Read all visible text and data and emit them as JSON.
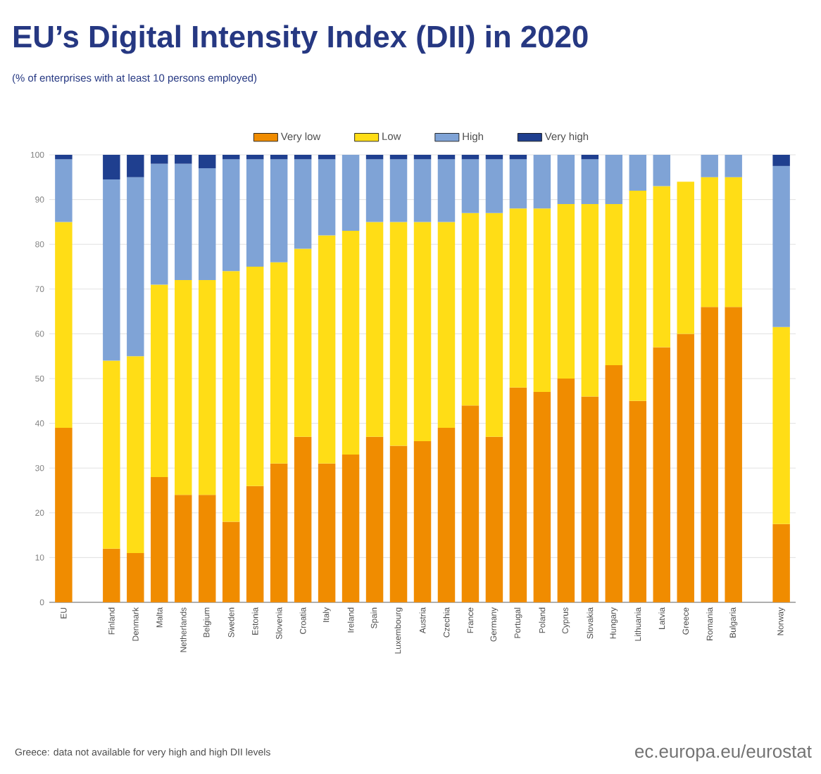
{
  "chart_data": {
    "type": "bar",
    "stacked": true,
    "title": "EU’s Digital Intensity Index (DII) in 2020",
    "subtitle": "(% of enterprises with at least 10 persons employed)",
    "categories": [
      "EU",
      null,
      "Finland",
      "Denmark",
      "Malta",
      "Netherlands",
      "Belgium",
      "Sweden",
      "Estonia",
      "Slovenia",
      "Croatia",
      "Italy",
      "Ireland",
      "Spain",
      "Luxembourg",
      "Austria",
      "Czechia",
      "France",
      "Germany",
      "Portugal",
      "Poland",
      "Cyprus",
      "Slovakia",
      "Hungary",
      "Lithuania",
      "Latvia",
      "Greece",
      "Romania",
      "Bulgaria",
      null,
      "Norway"
    ],
    "series": [
      {
        "name": "Very low",
        "color": "#f08c00",
        "values": [
          39,
          null,
          12,
          11,
          28,
          24,
          24,
          18,
          26,
          31,
          37,
          31,
          33,
          37,
          35,
          36,
          39,
          44,
          37,
          48,
          47,
          50,
          46,
          53,
          45,
          57,
          60,
          66,
          66,
          null,
          17.5
        ]
      },
      {
        "name": "Low",
        "color": "#ffdd16",
        "values": [
          46,
          null,
          42,
          44,
          43,
          48,
          48,
          56,
          49,
          45,
          42,
          51,
          50,
          48,
          50,
          49,
          46,
          43,
          50,
          40,
          41,
          39,
          43,
          36,
          47,
          36,
          34,
          29,
          29,
          null,
          44
        ]
      },
      {
        "name": "High",
        "color": "#7fa3d6",
        "values": [
          14,
          null,
          40.5,
          40,
          27,
          26,
          25,
          25,
          24,
          23,
          20,
          17,
          17,
          14,
          14,
          14,
          14,
          12,
          12,
          11,
          12,
          11,
          10,
          11,
          8,
          7,
          null,
          5,
          5,
          null,
          36
        ]
      },
      {
        "name": "Very high",
        "color": "#1f3f8f",
        "values": [
          1,
          null,
          5.5,
          5,
          2,
          2,
          3,
          1,
          1,
          1,
          1,
          1,
          0,
          1,
          1,
          1,
          1,
          1,
          1,
          1,
          0,
          0,
          1,
          0,
          0,
          0,
          null,
          0,
          0,
          null,
          2.5
        ]
      }
    ],
    "ylim": [
      0,
      100
    ],
    "yticks": [
      0,
      10,
      20,
      30,
      40,
      50,
      60,
      70,
      80,
      90,
      100
    ],
    "grid": "y",
    "legend": "top",
    "annotations": [
      "Greece: data not available for very high and high DII levels",
      "ec.europa.eu/eurostat"
    ]
  }
}
